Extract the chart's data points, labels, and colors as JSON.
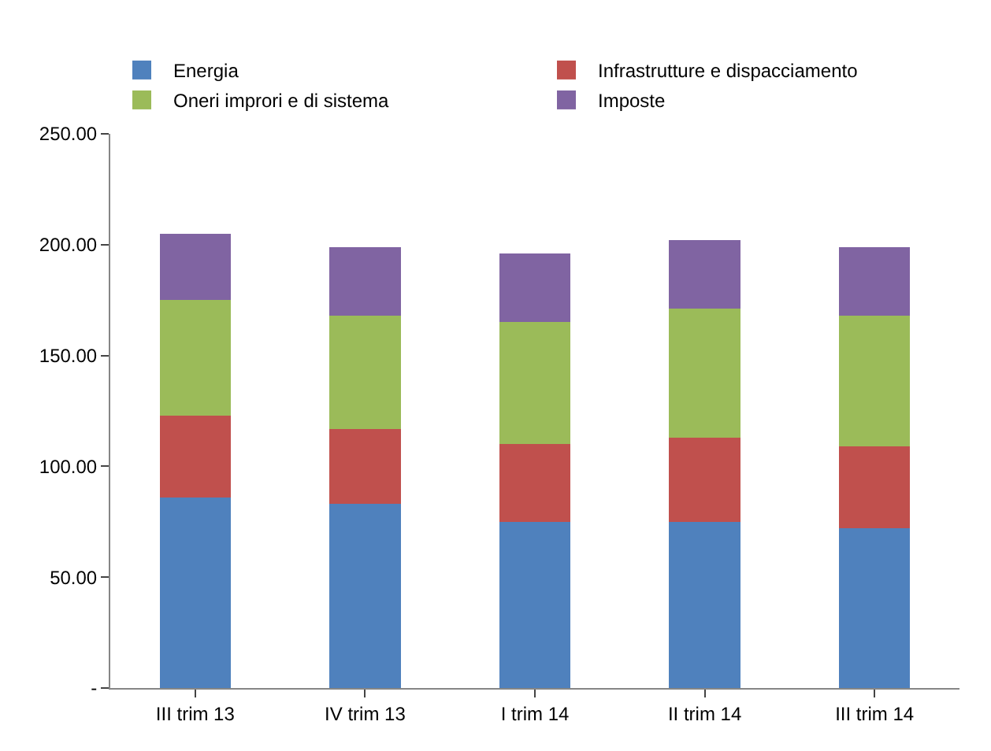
{
  "chart_data": {
    "type": "bar",
    "stacked": true,
    "categories": [
      "III trim 13",
      "IV trim 13",
      "I trim 14",
      "II trim 14",
      "III trim 14"
    ],
    "series": [
      {
        "name": "Energia",
        "color": "#4f81bd",
        "values": [
          86,
          83,
          75,
          75,
          72
        ]
      },
      {
        "name": "Infrastrutture e dispacciamento",
        "color": "#c0504d",
        "values": [
          37,
          34,
          35,
          38,
          37
        ]
      },
      {
        "name": "Oneri improri e di sistema",
        "color": "#9bbb59",
        "values": [
          52,
          51,
          55,
          58,
          59
        ]
      },
      {
        "name": "Imposte",
        "color": "#8064a2",
        "values": [
          30,
          31,
          31,
          31,
          31
        ]
      }
    ],
    "ylim": [
      0,
      250
    ],
    "yticks": [
      {
        "value": 0,
        "label": "-"
      },
      {
        "value": 50,
        "label": "50.00"
      },
      {
        "value": 100,
        "label": "100.00"
      },
      {
        "value": 150,
        "label": "150.00"
      },
      {
        "value": 200,
        "label": "200.00"
      },
      {
        "value": 250,
        "label": "250.00"
      }
    ],
    "grid": false,
    "legend": "top"
  }
}
